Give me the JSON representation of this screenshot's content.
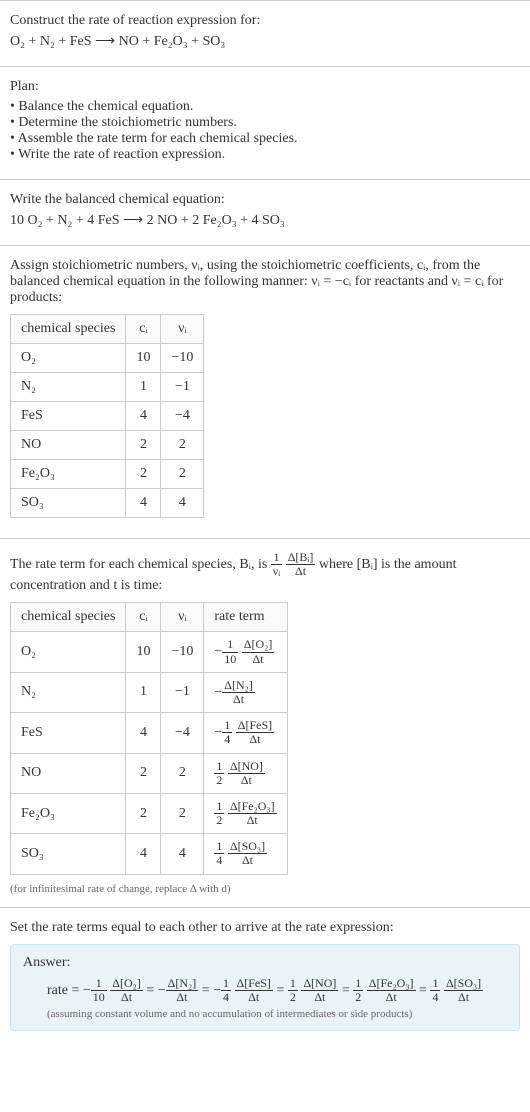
{
  "intro": {
    "prompt": "Construct the rate of reaction expression for:",
    "unbalanced": "O₂ + N₂ + FeS ⟶ NO + Fe₂O₃ + SO₃"
  },
  "plan": {
    "heading": "Plan:",
    "items": [
      "Balance the chemical equation.",
      "Determine the stoichiometric numbers.",
      "Assemble the rate term for each chemical species.",
      "Write the rate of reaction expression."
    ]
  },
  "balanced": {
    "heading": "Write the balanced chemical equation:",
    "equation": "10 O₂ + N₂ + 4 FeS ⟶ 2 NO + 2 Fe₂O₃ + 4 SO₃"
  },
  "stoich": {
    "intro_a": "Assign stoichiometric numbers, νᵢ, using the stoichiometric coefficients, cᵢ, from the balanced chemical equation in the following manner: νᵢ = −cᵢ for reactants and νᵢ = cᵢ for products:",
    "headers": [
      "chemical species",
      "cᵢ",
      "νᵢ"
    ],
    "rows": [
      {
        "species": "O₂",
        "c": "10",
        "v": "−10"
      },
      {
        "species": "N₂",
        "c": "1",
        "v": "−1"
      },
      {
        "species": "FeS",
        "c": "4",
        "v": "−4"
      },
      {
        "species": "NO",
        "c": "2",
        "v": "2"
      },
      {
        "species": "Fe₂O₃",
        "c": "2",
        "v": "2"
      },
      {
        "species": "SO₃",
        "c": "4",
        "v": "4"
      }
    ]
  },
  "rate_terms": {
    "intro_pre": "The rate term for each chemical species, Bᵢ, is ",
    "intro_post": " where [Bᵢ] is the amount concentration and t is time:",
    "frac1_num": "1",
    "frac1_den": "νᵢ",
    "frac2_num": "Δ[Bᵢ]",
    "frac2_den": "Δt",
    "headers": [
      "chemical species",
      "cᵢ",
      "νᵢ",
      "rate term"
    ],
    "rows": [
      {
        "species": "O₂",
        "c": "10",
        "v": "−10",
        "sign": "−",
        "coef_num": "1",
        "coef_den": "10",
        "d_num": "Δ[O₂]",
        "d_den": "Δt",
        "show_coef": true
      },
      {
        "species": "N₂",
        "c": "1",
        "v": "−1",
        "sign": "−",
        "coef_num": "",
        "coef_den": "",
        "d_num": "Δ[N₂]",
        "d_den": "Δt",
        "show_coef": false
      },
      {
        "species": "FeS",
        "c": "4",
        "v": "−4",
        "sign": "−",
        "coef_num": "1",
        "coef_den": "4",
        "d_num": "Δ[FeS]",
        "d_den": "Δt",
        "show_coef": true
      },
      {
        "species": "NO",
        "c": "2",
        "v": "2",
        "sign": "",
        "coef_num": "1",
        "coef_den": "2",
        "d_num": "Δ[NO]",
        "d_den": "Δt",
        "show_coef": true
      },
      {
        "species": "Fe₂O₃",
        "c": "2",
        "v": "2",
        "sign": "",
        "coef_num": "1",
        "coef_den": "2",
        "d_num": "Δ[Fe₂O₃]",
        "d_den": "Δt",
        "show_coef": true
      },
      {
        "species": "SO₃",
        "c": "4",
        "v": "4",
        "sign": "",
        "coef_num": "1",
        "coef_den": "4",
        "d_num": "Δ[SO₃]",
        "d_den": "Δt",
        "show_coef": true
      }
    ],
    "footnote": "(for infinitesimal rate of change, replace Δ with d)"
  },
  "final": {
    "intro": "Set the rate terms equal to each other to arrive at the rate expression:",
    "answer_label": "Answer:",
    "rate_eq_prefix": "rate = ",
    "terms": [
      {
        "sign": "−",
        "coef_num": "1",
        "coef_den": "10",
        "d_num": "Δ[O₂]",
        "d_den": "Δt",
        "show_coef": true
      },
      {
        "sign": "−",
        "coef_num": "",
        "coef_den": "",
        "d_num": "Δ[N₂]",
        "d_den": "Δt",
        "show_coef": false
      },
      {
        "sign": "−",
        "coef_num": "1",
        "coef_den": "4",
        "d_num": "Δ[FeS]",
        "d_den": "Δt",
        "show_coef": true
      },
      {
        "sign": "",
        "coef_num": "1",
        "coef_den": "2",
        "d_num": "Δ[NO]",
        "d_den": "Δt",
        "show_coef": true
      },
      {
        "sign": "",
        "coef_num": "1",
        "coef_den": "2",
        "d_num": "Δ[Fe₂O₃]",
        "d_den": "Δt",
        "show_coef": true
      },
      {
        "sign": "",
        "coef_num": "1",
        "coef_den": "4",
        "d_num": "Δ[SO₃]",
        "d_den": "Δt",
        "show_coef": true
      }
    ],
    "assumption": "(assuming constant volume and no accumulation of intermediates or side products)"
  },
  "colors": {
    "answer_bg": "#eaf4f8",
    "answer_border": "#cde4ed",
    "rule": "#ccc",
    "text": "#333"
  }
}
